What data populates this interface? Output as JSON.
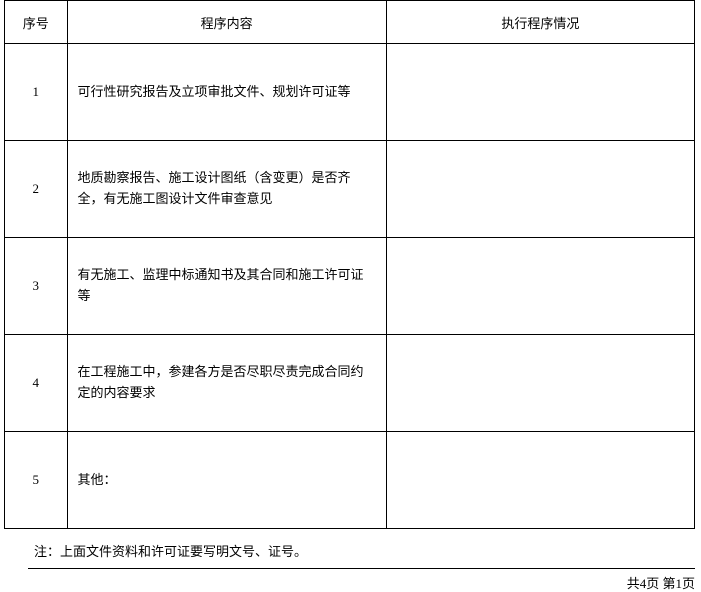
{
  "table": {
    "headers": {
      "num": "序号",
      "content": "程序内容",
      "status": "执行程序情况"
    },
    "rows": [
      {
        "num": "1",
        "content": "可行性研究报告及立项审批文件、规划许可证等",
        "status": ""
      },
      {
        "num": "2",
        "content": "地质勘察报告、施工设计图纸（含变更）是否齐全，有无施工图设计文件审查意见",
        "status": ""
      },
      {
        "num": "3",
        "content": "有无施工、监理中标通知书及其合同和施工许可证等",
        "status": ""
      },
      {
        "num": "4",
        "content": "在工程施工中，参建各方是否尽职尽责完成合同约定的内容要求",
        "status": ""
      },
      {
        "num": "5",
        "content": "其他：",
        "status": ""
      }
    ]
  },
  "note": "注：上面文件资料和许可证要写明文号、证号。",
  "footer": "共4页  第1页"
}
